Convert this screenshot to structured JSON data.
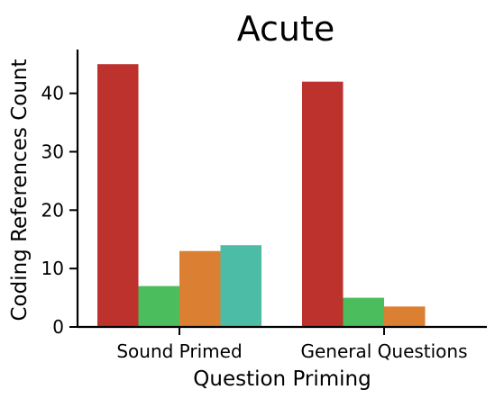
{
  "chart_data": {
    "type": "bar",
    "title": "Acute",
    "xlabel": "Question Priming",
    "ylabel": "Coding References Count",
    "categories": [
      "Sound Primed",
      "General Questions"
    ],
    "series": [
      {
        "color": "#bd322d",
        "values": [
          45,
          42
        ]
      },
      {
        "color": "#4bbd5c",
        "values": [
          7,
          5
        ]
      },
      {
        "color": "#db7f33",
        "values": [
          13,
          3.5
        ]
      },
      {
        "color": "#4dbca6",
        "values": [
          14,
          0
        ]
      }
    ],
    "ylim": [
      0,
      47.5
    ],
    "yticks": [
      0,
      10,
      20,
      30,
      40
    ],
    "grid": false,
    "legend": "none"
  }
}
